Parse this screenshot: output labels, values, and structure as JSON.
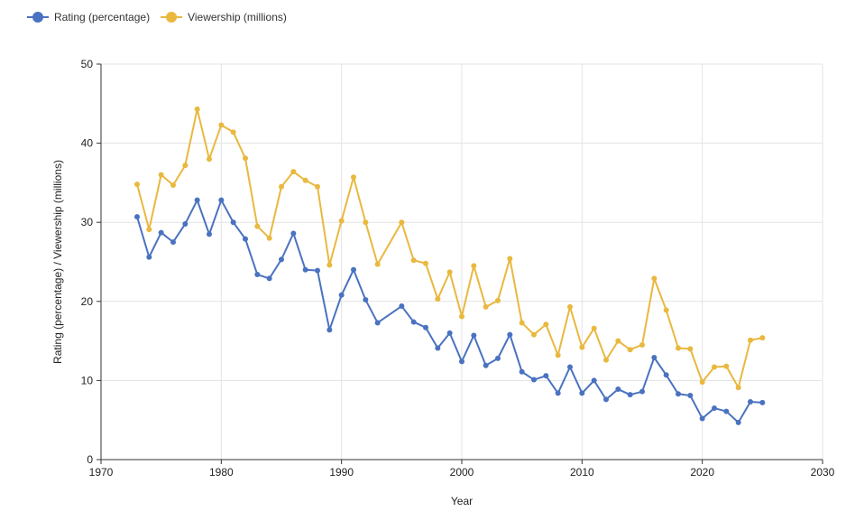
{
  "chart_data": {
    "type": "line",
    "xlabel": "Year",
    "ylabel": "Rating (percentage) / Viewership (millions)",
    "xlim": [
      1970,
      2030
    ],
    "ylim": [
      0,
      50
    ],
    "x_ticks": [
      1970,
      1980,
      1990,
      2000,
      2010,
      2020,
      2030
    ],
    "y_ticks": [
      0,
      10,
      20,
      30,
      40,
      50
    ],
    "grid": true,
    "legend_position": "top-left",
    "x": [
      1973,
      1974,
      1975,
      1976,
      1977,
      1978,
      1979,
      1980,
      1981,
      1982,
      1983,
      1984,
      1985,
      1986,
      1987,
      1988,
      1989,
      1990,
      1991,
      1992,
      1993,
      1995,
      1996,
      1997,
      1998,
      1999,
      2000,
      2001,
      2002,
      2003,
      2004,
      2005,
      2006,
      2007,
      2008,
      2009,
      2010,
      2011,
      2012,
      2013,
      2014,
      2015,
      2016,
      2017,
      2018,
      2019,
      2020,
      2021,
      2022,
      2023,
      2024,
      2025
    ],
    "series": [
      {
        "name": "Rating (percentage)",
        "color": "#4a72c0",
        "values": [
          30.7,
          25.6,
          28.7,
          27.5,
          29.8,
          32.8,
          28.5,
          32.8,
          30.0,
          27.9,
          23.4,
          22.9,
          25.3,
          28.6,
          24.0,
          23.9,
          16.4,
          20.8,
          24.0,
          20.2,
          17.3,
          19.4,
          17.4,
          16.7,
          14.1,
          16.0,
          12.4,
          15.7,
          11.9,
          12.8,
          15.8,
          11.1,
          10.1,
          10.6,
          8.4,
          11.7,
          8.4,
          10.0,
          7.6,
          8.9,
          8.2,
          8.6,
          12.9,
          10.7,
          8.3,
          8.1,
          5.2,
          6.5,
          6.1,
          4.7,
          7.3,
          7.2
        ]
      },
      {
        "name": "Viewership (millions)",
        "color": "#e9b83f",
        "values": [
          34.8,
          29.1,
          36.0,
          34.7,
          37.2,
          44.3,
          38.0,
          42.3,
          41.4,
          38.1,
          29.5,
          28.0,
          34.5,
          36.4,
          35.3,
          34.5,
          24.6,
          30.2,
          35.7,
          30.0,
          24.7,
          30.0,
          25.2,
          24.8,
          20.3,
          23.7,
          18.1,
          24.5,
          19.3,
          20.1,
          25.4,
          17.3,
          15.8,
          17.1,
          13.2,
          19.3,
          14.2,
          16.6,
          12.6,
          15.0,
          13.9,
          14.5,
          22.9,
          18.9,
          14.1,
          14.0,
          9.8,
          11.7,
          11.8,
          9.1,
          15.1,
          15.4
        ]
      }
    ]
  }
}
